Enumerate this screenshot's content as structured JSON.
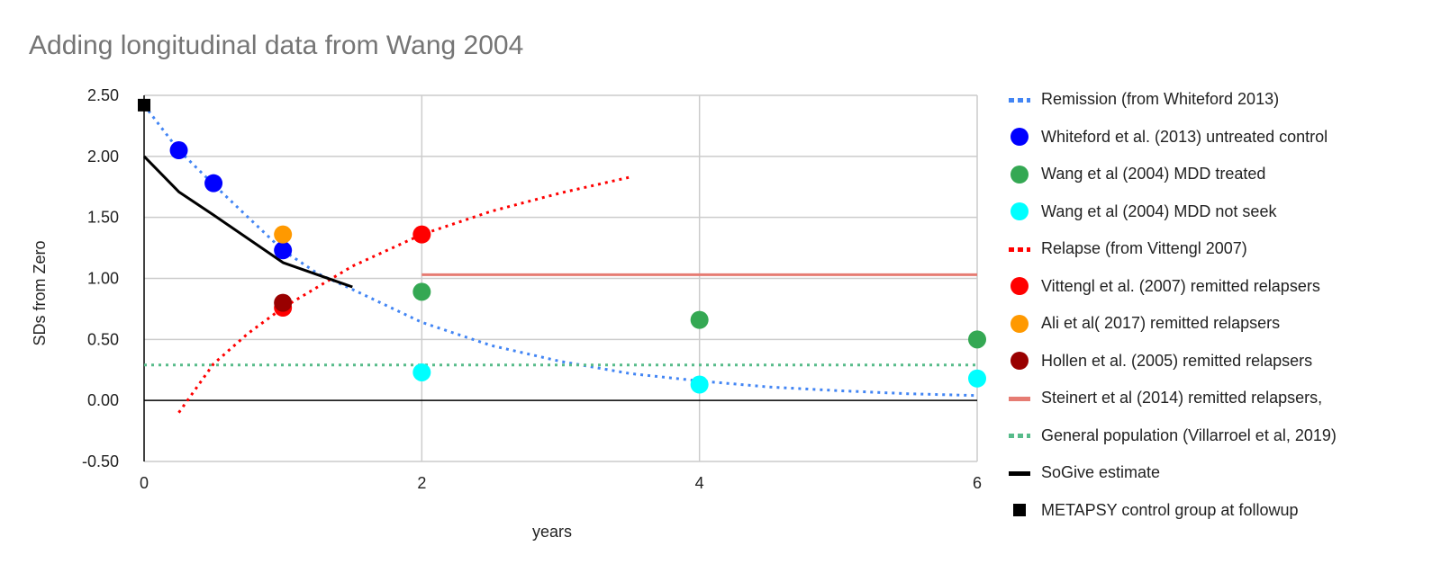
{
  "chart_data": {
    "type": "scatter",
    "title": "Adding longitudinal data from Wang 2004",
    "xlabel": "years",
    "ylabel": "SDs from Zero",
    "xlim": [
      0,
      6
    ],
    "ylim": [
      -0.5,
      2.5
    ],
    "x_ticks": [
      "0",
      "2",
      "4",
      "6"
    ],
    "y_ticks": [
      "2.50",
      "2.00",
      "1.50",
      "1.00",
      "0.50",
      "0.00",
      "-0.50"
    ],
    "grid": true,
    "legend_position": "right",
    "series": [
      {
        "name": "Remission (from Whiteford 2013)",
        "kind": "dotted-line",
        "color": "#4285f4",
        "points": [
          [
            0,
            2.42
          ],
          [
            0.25,
            2.05
          ],
          [
            0.5,
            1.77
          ],
          [
            0.75,
            1.5
          ],
          [
            1,
            1.23
          ],
          [
            1.25,
            1.04
          ],
          [
            1.5,
            0.91
          ],
          [
            2,
            0.64
          ],
          [
            2.5,
            0.45
          ],
          [
            3,
            0.32
          ],
          [
            3.5,
            0.22
          ],
          [
            4,
            0.16
          ],
          [
            4.5,
            0.11
          ],
          [
            5,
            0.08
          ],
          [
            5.5,
            0.055
          ],
          [
            6,
            0.04
          ]
        ]
      },
      {
        "name": "Whiteford et al. (2013) untreated control",
        "kind": "points",
        "color": "#0000ff",
        "points": [
          [
            0.25,
            2.05
          ],
          [
            0.5,
            1.78
          ],
          [
            1,
            1.23
          ]
        ]
      },
      {
        "name": "Wang et al (2004) MDD treated",
        "kind": "points",
        "color": "#34a853",
        "points": [
          [
            2,
            0.89
          ],
          [
            4,
            0.66
          ],
          [
            6,
            0.5
          ]
        ]
      },
      {
        "name": "Wang et al (2004) MDD not seek",
        "kind": "points",
        "color": "#00ffff",
        "points": [
          [
            2,
            0.23
          ],
          [
            4,
            0.13
          ],
          [
            6,
            0.18
          ]
        ]
      },
      {
        "name": "Relapse (from Vittengl 2007)",
        "kind": "dotted-line",
        "color": "#ff0000",
        "points": [
          [
            0.25,
            -0.1
          ],
          [
            0.5,
            0.3
          ],
          [
            0.75,
            0.55
          ],
          [
            1,
            0.76
          ],
          [
            1.5,
            1.1
          ],
          [
            2,
            1.36
          ],
          [
            2.5,
            1.55
          ],
          [
            3,
            1.7
          ],
          [
            3.5,
            1.83
          ]
        ]
      },
      {
        "name": "Vittengl et al. (2007) remitted relapsers",
        "kind": "points",
        "color": "#ff0000",
        "points": [
          [
            1,
            0.76
          ],
          [
            2,
            1.36
          ]
        ]
      },
      {
        "name": "Ali et al( 2017) remitted relapsers",
        "kind": "points",
        "color": "#ff9900",
        "points": [
          [
            1,
            1.36
          ]
        ]
      },
      {
        "name": "Hollen et al. (2005) remitted relapsers",
        "kind": "points",
        "color": "#990000",
        "points": [
          [
            1,
            0.8
          ]
        ]
      },
      {
        "name": "Steinert et al (2014) remitted relapsers,",
        "kind": "line",
        "color": "#e67c73",
        "points": [
          [
            2,
            1.03
          ],
          [
            6,
            1.03
          ]
        ]
      },
      {
        "name": "General population (Villarroel et al, 2019)",
        "kind": "dotted-line",
        "color": "#57bb8a",
        "points": [
          [
            0,
            0.29
          ],
          [
            6,
            0.29
          ]
        ]
      },
      {
        "name": "SoGive estimate",
        "kind": "line",
        "color": "#000000",
        "points": [
          [
            0,
            2.0
          ],
          [
            0.25,
            1.71
          ],
          [
            0.5,
            1.52
          ],
          [
            1,
            1.13
          ],
          [
            1.5,
            0.93
          ]
        ]
      },
      {
        "name": "METAPSY control group at followup",
        "kind": "square",
        "color": "#000000",
        "points": [
          [
            0,
            2.42
          ]
        ]
      }
    ]
  }
}
